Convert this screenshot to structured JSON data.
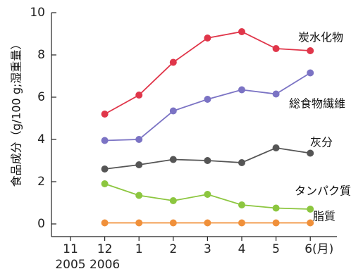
{
  "chart_data": {
    "type": "line",
    "ylabel": "食品成分（g/100 g;湿重量）",
    "ylim": [
      0,
      10
    ],
    "yticks": [
      0,
      2,
      4,
      6,
      8,
      10
    ],
    "x_ticks": [
      "11",
      "12",
      "1",
      "2",
      "3",
      "4",
      "5",
      "6(月)"
    ],
    "year_labels": [
      "2005",
      "2006"
    ],
    "x": [
      "12",
      "1",
      "2",
      "3",
      "4",
      "5",
      "6"
    ],
    "grid": false,
    "legend": "inline-right",
    "series": [
      {
        "name": "炭水化物",
        "color": "#e0364a",
        "values": [
          5.2,
          6.1,
          7.65,
          8.8,
          9.1,
          8.3,
          8.2
        ]
      },
      {
        "name": "総食物繊維",
        "color": "#7b73c4",
        "values": [
          3.95,
          4.0,
          5.35,
          5.9,
          6.35,
          6.15,
          7.15
        ]
      },
      {
        "name": "灰分",
        "color": "#555555",
        "values": [
          2.6,
          2.8,
          3.05,
          3.0,
          2.9,
          3.6,
          3.35
        ]
      },
      {
        "name": "タンパク質",
        "color": "#8cc63f",
        "values": [
          1.9,
          1.35,
          1.1,
          1.4,
          0.9,
          0.75,
          0.7
        ]
      },
      {
        "name": "脂質",
        "color": "#f0903a",
        "values": [
          0.05,
          0.05,
          0.05,
          0.05,
          0.05,
          0.05,
          0.05
        ]
      }
    ]
  }
}
